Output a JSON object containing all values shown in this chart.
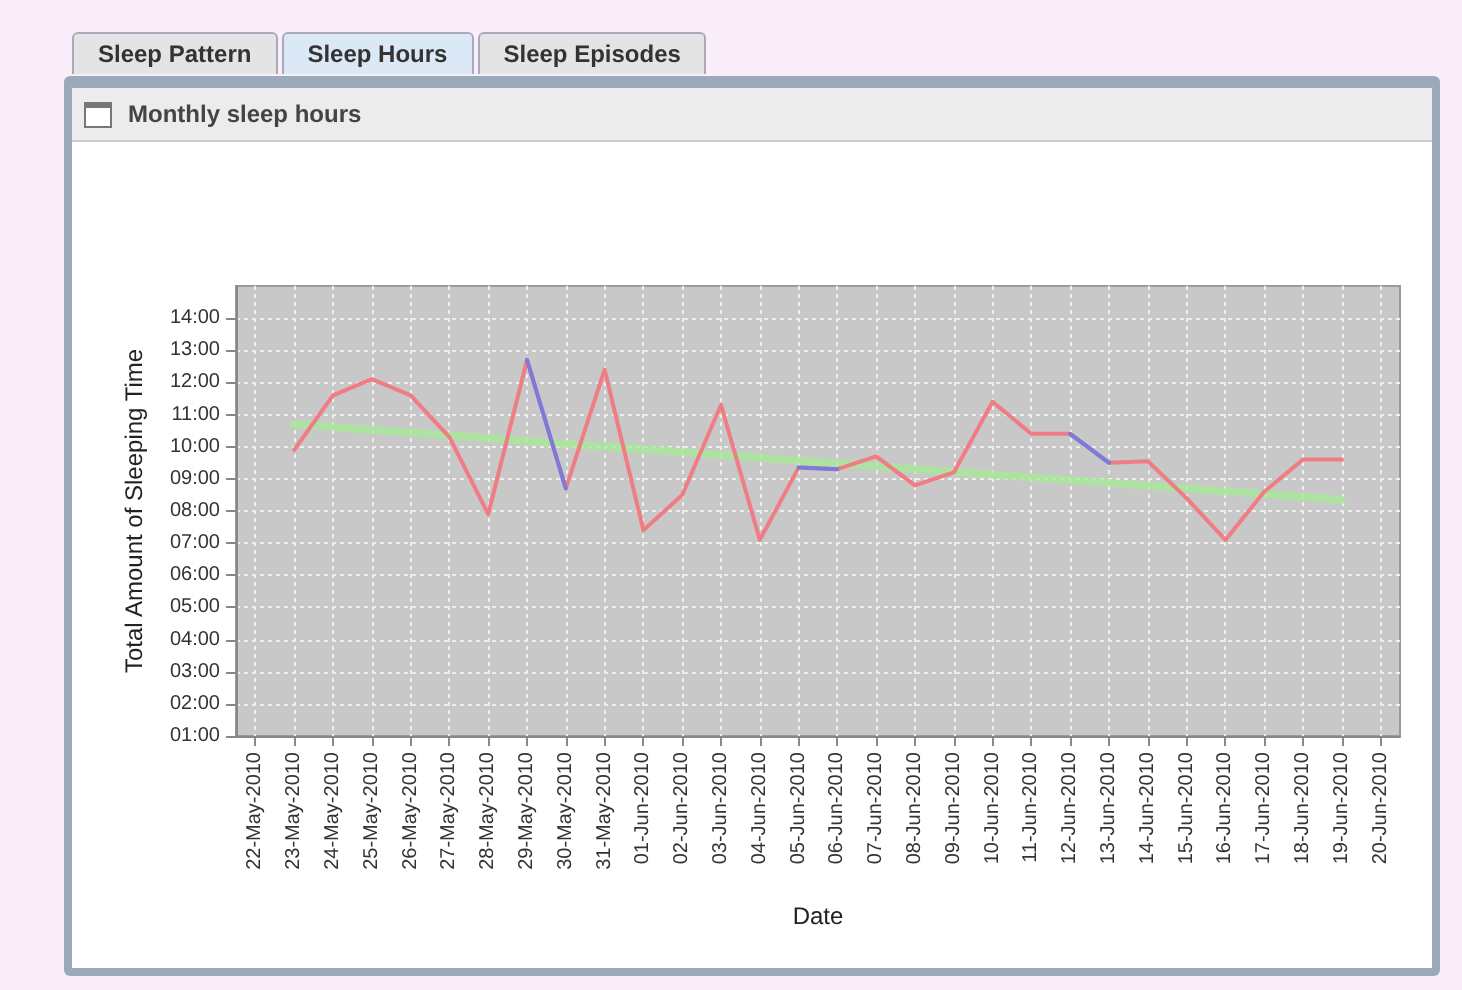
{
  "chart_data": {
    "type": "line",
    "title": "Monthly sleep hours",
    "annotations": [
      "Sleep Pattern",
      "Sleep Hours",
      "Sleep Episodes"
    ],
    "xlabel": "Date",
    "ylabel": "Total Amount of Sleeping Time",
    "categories": [
      "22-May-2010",
      "23-May-2010",
      "24-May-2010",
      "25-May-2010",
      "26-May-2010",
      "27-May-2010",
      "28-May-2010",
      "29-May-2010",
      "30-May-2010",
      "31-May-2010",
      "01-Jun-2010",
      "02-Jun-2010",
      "03-Jun-2010",
      "04-Jun-2010",
      "05-Jun-2010",
      "06-Jun-2010",
      "07-Jun-2010",
      "08-Jun-2010",
      "09-Jun-2010",
      "10-Jun-2010",
      "11-Jun-2010",
      "12-Jun-2010",
      "13-Jun-2010",
      "14-Jun-2010",
      "15-Jun-2010",
      "16-Jun-2010",
      "17-Jun-2010",
      "18-Jun-2010",
      "19-Jun-2010",
      "20-Jun-2010"
    ],
    "series": [
      {
        "color": "#f07c84",
        "values": [
          null,
          9.9,
          11.6,
          12.1,
          11.6,
          10.3,
          7.9,
          12.7,
          8.7,
          12.4,
          7.4,
          8.5,
          11.3,
          7.1,
          9.35,
          9.3,
          9.7,
          8.8,
          9.2,
          11.4,
          10.4,
          10.4,
          9.5,
          9.55,
          8.4,
          7.1,
          8.6,
          9.6,
          9.6,
          null
        ]
      },
      {
        "color": "#7b7bdc",
        "values": [
          null,
          null,
          null,
          null,
          null,
          null,
          null,
          12.7,
          8.7,
          null,
          null,
          null,
          null,
          null,
          9.35,
          9.3,
          null,
          null,
          null,
          null,
          null,
          10.4,
          9.5,
          null,
          null,
          null,
          null,
          null,
          null,
          null
        ]
      },
      {
        "type": "line",
        "color": "#a8e89a",
        "x": [
          "23-May-2010",
          "19-Jun-2010"
        ],
        "values": [
          10.7,
          8.35
        ]
      }
    ],
    "ylim": [
      1,
      15
    ],
    "yticks": [
      {
        "value": 1,
        "label": "01:00"
      },
      {
        "value": 2,
        "label": "02:00"
      },
      {
        "value": 3,
        "label": "03:00"
      },
      {
        "value": 4,
        "label": "04:00"
      },
      {
        "value": 5,
        "label": "05:00"
      },
      {
        "value": 6,
        "label": "06:00"
      },
      {
        "value": 7,
        "label": "07:00"
      },
      {
        "value": 8,
        "label": "08:00"
      },
      {
        "value": 9,
        "label": "09:00"
      },
      {
        "value": 10,
        "label": "10:00"
      },
      {
        "value": 11,
        "label": "11:00"
      },
      {
        "value": 12,
        "label": "12:00"
      },
      {
        "value": 13,
        "label": "13:00"
      },
      {
        "value": 14,
        "label": "14:00"
      }
    ],
    "grid": true,
    "marker": "none",
    "line_style": "solid"
  }
}
